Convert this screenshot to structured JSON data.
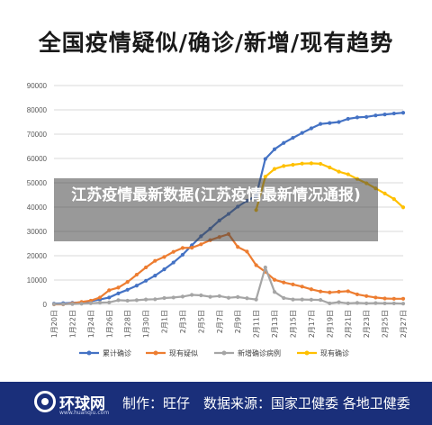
{
  "title": "全国疫情疑似/确诊/新增/现有趋势",
  "overlay_caption": "江苏疫情最新数据(江苏疫情最新情况通报)",
  "footer": {
    "logo": "环球网",
    "logo_sub": "www.huanqiu.com",
    "producer": "制作：旺仔",
    "source": "数据来源：国家卫健委 各地卫健委"
  },
  "colors": {
    "cumulative": "#4472C4",
    "suspected": "#ED7D31",
    "new": "#A5A5A5",
    "current": "#FFC000",
    "footer_bg": "#1a2f7a"
  },
  "chart_data": {
    "type": "line",
    "title": "全国疫情疑似/确诊/新增/现有趋势",
    "ylim": [
      0,
      90000
    ],
    "yticks": [
      0,
      10000,
      20000,
      30000,
      40000,
      50000,
      60000,
      70000,
      80000,
      90000
    ],
    "grid": true,
    "legend_position": "bottom",
    "x": [
      "1月20日",
      "1月21日",
      "1月22日",
      "1月23日",
      "1月24日",
      "1月25日",
      "1月26日",
      "1月27日",
      "1月28日",
      "1月29日",
      "1月30日",
      "1月31日",
      "2月1日",
      "2月2日",
      "2月3日",
      "2月4日",
      "2月5日",
      "2月6日",
      "2月7日",
      "2月8日",
      "2月9日",
      "2月10日",
      "2月11日",
      "2月12日",
      "2月13日",
      "2月14日",
      "2月15日",
      "2月16日",
      "2月17日",
      "2月18日",
      "2月19日",
      "2月20日",
      "2月21日",
      "2月22日",
      "2月23日",
      "2月24日",
      "2月25日",
      "2月26日",
      "2月27日"
    ],
    "xtick_labels": [
      "1月20日",
      "1月22日",
      "1月24日",
      "1月26日",
      "1月28日",
      "1月30日",
      "2月1日",
      "2月3日",
      "2月5日",
      "2月7日",
      "2月9日",
      "2月11日",
      "2月13日",
      "2月15日",
      "2月17日",
      "2月19日",
      "2月21日",
      "2月23日",
      "2月25日",
      "2月27日"
    ],
    "series": [
      {
        "name": "累计确诊",
        "color": "#4472C4",
        "values": [
          300,
          450,
          600,
          850,
          1300,
          2000,
          2800,
          4500,
          6000,
          7700,
          9700,
          11800,
          14400,
          17200,
          20400,
          24300,
          28000,
          31100,
          34500,
          37200,
          40200,
          42600,
          44600,
          59800,
          63800,
          66400,
          68500,
          70500,
          72400,
          74200,
          74600,
          75000,
          76300,
          76900,
          77100,
          77700,
          78100,
          78500,
          78800
        ]
      },
      {
        "name": "现有疑似",
        "color": "#ED7D31",
        "values": [
          0,
          0,
          400,
          1000,
          1500,
          2800,
          5800,
          6900,
          9200,
          12200,
          15200,
          17900,
          19500,
          21600,
          23200,
          23300,
          24700,
          26400,
          27700,
          28900,
          23600,
          21700,
          16100,
          13400,
          10100,
          9000,
          8200,
          7300,
          6200,
          5300,
          4900,
          5200,
          5400,
          4100,
          3400,
          2800,
          2400,
          2300,
          2300
        ]
      },
      {
        "name": "新增确诊病例",
        "color": "#A5A5A5",
        "values": [
          100,
          100,
          150,
          250,
          450,
          700,
          800,
          1700,
          1500,
          1700,
          2000,
          2100,
          2600,
          2800,
          3200,
          3900,
          3700,
          3100,
          3400,
          2700,
          3000,
          2500,
          2000,
          15200,
          5100,
          2600,
          2000,
          2000,
          1900,
          1800,
          400,
          900,
          400,
          600,
          400,
          500,
          400,
          400,
          300
        ]
      },
      {
        "name": "现有确诊",
        "color": "#FFC000",
        "values": [
          null,
          null,
          null,
          null,
          null,
          null,
          null,
          null,
          null,
          null,
          null,
          null,
          null,
          null,
          null,
          null,
          null,
          null,
          null,
          null,
          null,
          null,
          38800,
          52500,
          55700,
          56900,
          57400,
          57900,
          58000,
          57800,
          56300,
          54600,
          53500,
          51600,
          49800,
          47700,
          45600,
          43300,
          39900
        ]
      }
    ]
  }
}
